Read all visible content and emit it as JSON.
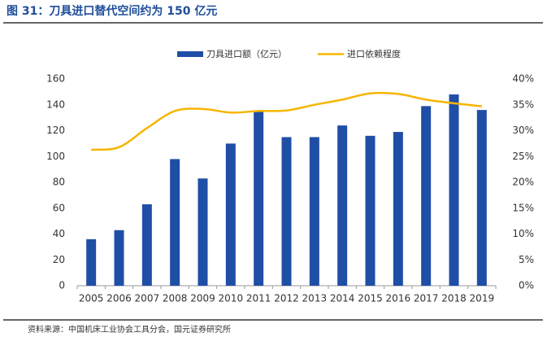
{
  "chart_data": {
    "type": "bar-line",
    "title": "图 31：刀具进口替代空间约为 150 亿元",
    "source": "资料来源：中国机床工业协会工具分会，国元证券研究所",
    "categories": [
      "2005",
      "2006",
      "2007",
      "2008",
      "2009",
      "2010",
      "2011",
      "2012",
      "2013",
      "2014",
      "2015",
      "2016",
      "2017",
      "2018",
      "2019"
    ],
    "series": [
      {
        "name": "刀具进口额（亿元）",
        "type": "bar",
        "color": "#1f4ea6",
        "values": [
          36,
          43,
          63,
          98,
          83,
          110,
          135,
          115,
          115,
          124,
          116,
          119,
          139,
          148,
          136
        ]
      },
      {
        "name": "进口依赖程度",
        "type": "line",
        "axis": "y2",
        "color": "#f7b500",
        "values": [
          26.3,
          26.8,
          30.5,
          33.8,
          34.2,
          33.5,
          33.8,
          33.9,
          35,
          36,
          37.2,
          37.1,
          36,
          35.3,
          34.7
        ]
      }
    ],
    "ylim": [
      0,
      160
    ],
    "yticks": [
      0,
      20,
      40,
      60,
      80,
      100,
      120,
      140,
      160
    ],
    "y2lim": [
      0,
      40
    ],
    "y2ticks": [
      {
        "value": 0,
        "label": "0%"
      },
      {
        "value": 5,
        "label": "5%"
      },
      {
        "value": 10,
        "label": "10%"
      },
      {
        "value": 15,
        "label": "15%"
      },
      {
        "value": 20,
        "label": "20%"
      },
      {
        "value": 25,
        "label": "25%"
      },
      {
        "value": 30,
        "label": "30%"
      },
      {
        "value": 35,
        "label": "35%"
      },
      {
        "value": 40,
        "label": "40%"
      }
    ]
  }
}
